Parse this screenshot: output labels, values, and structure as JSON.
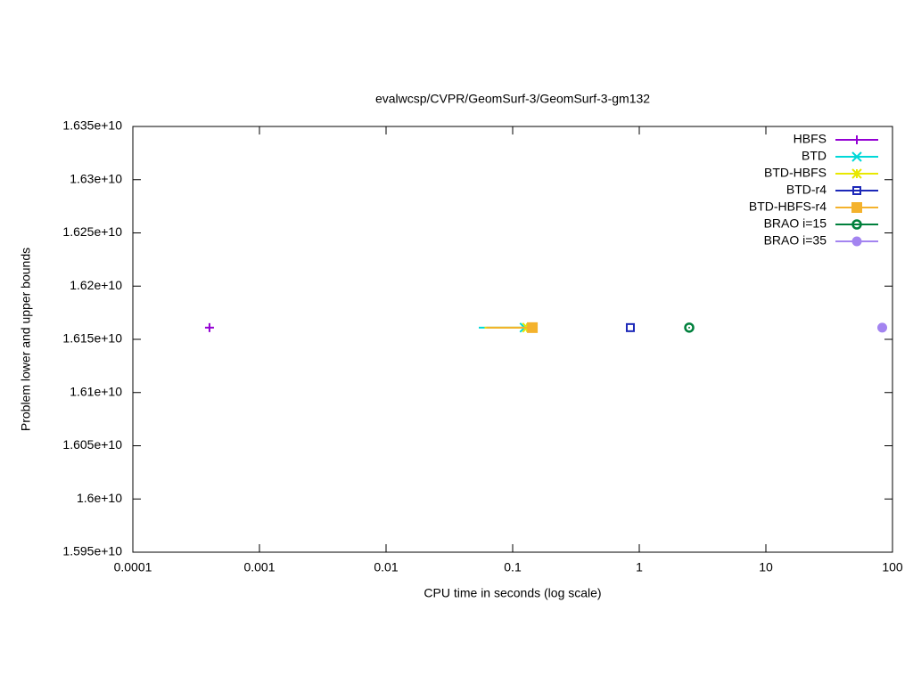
{
  "chart_data": {
    "type": "line",
    "title": "evalwcsp/CVPR/GeomSurf-3/GeomSurf-3-gm132",
    "xlabel": "CPU time in seconds (log scale)",
    "ylabel": "Problem lower and upper bounds",
    "xscale": "log",
    "xlim": [
      0.0001,
      100
    ],
    "xticks": [
      0.0001,
      0.001,
      0.01,
      0.1,
      1,
      10,
      100
    ],
    "ylim": [
      15950000000,
      16350000000
    ],
    "yticks": [
      {
        "value": 15950000000,
        "label": "1.595e+10"
      },
      {
        "value": 16000000000,
        "label": "1.6e+10"
      },
      {
        "value": 16050000000,
        "label": "1.605e+10"
      },
      {
        "value": 16100000000,
        "label": "1.61e+10"
      },
      {
        "value": 16150000000,
        "label": "1.615e+10"
      },
      {
        "value": 16200000000,
        "label": "1.62e+10"
      },
      {
        "value": 16250000000,
        "label": "1.625e+10"
      },
      {
        "value": 16300000000,
        "label": "1.63e+10"
      },
      {
        "value": 16350000000,
        "label": "1.635e+10"
      }
    ],
    "legend": "top-right",
    "series": [
      {
        "name": "HBFS",
        "color": "#9400d3",
        "marker": "plus",
        "x": [
          0.000403
        ],
        "values": [
          16161000000
        ]
      },
      {
        "name": "BTD",
        "color": "#00d8d8",
        "marker": "cross",
        "x": [
          0.054,
          0.124
        ],
        "values": [
          16161000000,
          16161000000
        ]
      },
      {
        "name": "BTD-HBFS",
        "color": "#e8e800",
        "marker": "star",
        "x": [
          0.06,
          0.13
        ],
        "values": [
          16161000000,
          16161000000
        ]
      },
      {
        "name": "BTD-r4",
        "color": "#1c28b8",
        "marker": "square-open",
        "x": [
          0.85
        ],
        "values": [
          16161000000
        ]
      },
      {
        "name": "BTD-HBFS-r4",
        "color": "#f4b22c",
        "marker": "square",
        "x": [
          0.062,
          0.143
        ],
        "values": [
          16161000000,
          16161000000
        ]
      },
      {
        "name": "BRAO i=15",
        "color": "#00803c",
        "marker": "circle-dot",
        "x": [
          2.48
        ],
        "values": [
          16161000000
        ]
      },
      {
        "name": "BRAO i=35",
        "color": "#a384f0",
        "marker": "circle",
        "x": [
          83
        ],
        "values": [
          16161000000
        ]
      }
    ]
  }
}
